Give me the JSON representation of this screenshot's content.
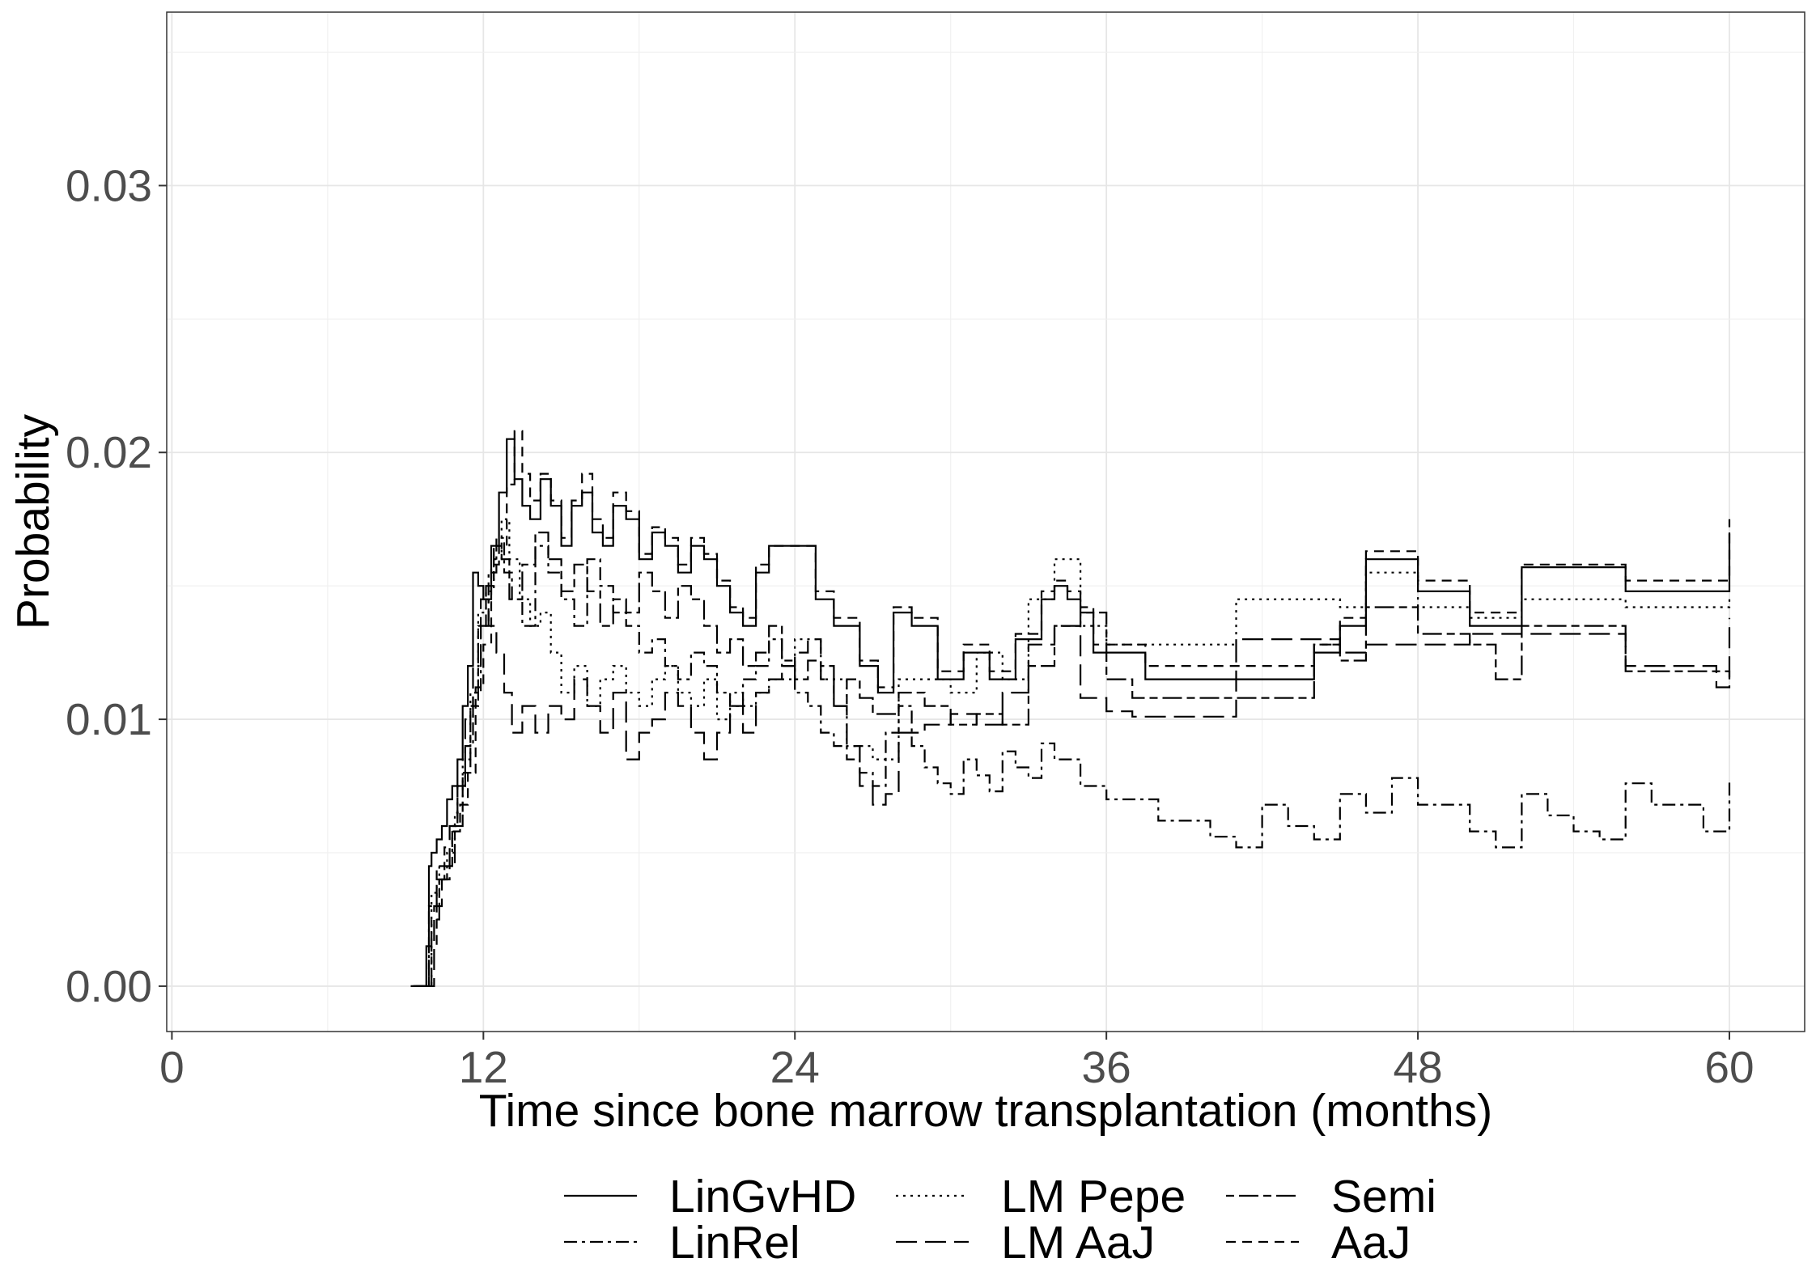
{
  "chart_data": {
    "type": "line",
    "title": "",
    "xlabel": "Time since bone marrow transplantation (months)",
    "ylabel": "Probability",
    "xlim": [
      0,
      60
    ],
    "ylim": [
      -0.0017,
      0.0365
    ],
    "x_ticks": [
      0,
      12,
      24,
      36,
      48,
      60
    ],
    "x_tick_labels": [
      "0",
      "12",
      "24",
      "36",
      "48",
      "60"
    ],
    "y_ticks": [
      0.0,
      0.01,
      0.02,
      0.03
    ],
    "y_tick_labels": [
      "0.00",
      "0.01",
      "0.02",
      "0.03"
    ],
    "grid": true,
    "legend_position": "bottom",
    "series": [
      {
        "name": "LinGvHD",
        "linestyle": "solid",
        "x": [
          9.2,
          9.8,
          9.9,
          10.0,
          10.2,
          10.4,
          10.6,
          10.8,
          11.0,
          11.2,
          11.4,
          11.6,
          11.8,
          12.0,
          12.3,
          12.6,
          12.9,
          13.2,
          13.5,
          13.8,
          14.2,
          14.6,
          15.0,
          15.4,
          15.8,
          16.2,
          16.6,
          17.0,
          17.5,
          18.0,
          18.5,
          19.0,
          19.5,
          20.0,
          20.5,
          21.0,
          21.5,
          22.0,
          22.5,
          23.0,
          24.0,
          24.8,
          25.5,
          26.5,
          27.2,
          27.8,
          28.5,
          29.5,
          30.5,
          31.5,
          32.5,
          33.5,
          34.0,
          34.5,
          35.0,
          35.5,
          36.0,
          37.5,
          41.0,
          44.0,
          45.0,
          46.0,
          48.0,
          50.0,
          52.0,
          55.5,
          56.0,
          59.5,
          60.0
        ],
        "y": [
          0.0,
          0.0015,
          0.0045,
          0.005,
          0.0055,
          0.006,
          0.007,
          0.0075,
          0.0085,
          0.0105,
          0.012,
          0.0155,
          0.015,
          0.0145,
          0.0165,
          0.0185,
          0.0205,
          0.019,
          0.018,
          0.0175,
          0.019,
          0.018,
          0.0165,
          0.018,
          0.0185,
          0.017,
          0.0165,
          0.018,
          0.0175,
          0.016,
          0.017,
          0.0165,
          0.0155,
          0.0165,
          0.016,
          0.015,
          0.014,
          0.0135,
          0.0155,
          0.0165,
          0.0165,
          0.0145,
          0.0135,
          0.012,
          0.011,
          0.014,
          0.0135,
          0.0115,
          0.0125,
          0.0115,
          0.013,
          0.0145,
          0.015,
          0.0145,
          0.014,
          0.0125,
          0.0125,
          0.0115,
          0.0115,
          0.0125,
          0.0135,
          0.016,
          0.0148,
          0.0135,
          0.0157,
          0.0157,
          0.0148,
          0.0148,
          0.017
        ]
      },
      {
        "name": "LinRel",
        "linestyle": "dashdot",
        "x": [
          9.3,
          9.9,
          10.2,
          10.5,
          10.8,
          11.0,
          11.3,
          11.6,
          11.9,
          12.2,
          12.5,
          12.8,
          13.1,
          13.5,
          14.0,
          14.5,
          15.0,
          15.5,
          16.0,
          16.5,
          17.0,
          17.5,
          18.0,
          18.5,
          19.0,
          19.5,
          20.0,
          20.5,
          21.0,
          21.5,
          22.0,
          22.5,
          23.0,
          23.5,
          24.0,
          24.5,
          25.0,
          25.5,
          26.0,
          26.5,
          27.0,
          27.5,
          28.0,
          28.5,
          29.0,
          29.5,
          30.0,
          30.5,
          31.0,
          31.5,
          32.0,
          32.5,
          33.0,
          33.5,
          34.0,
          35.0,
          36.0,
          38.0,
          40.0,
          41.0,
          42.0,
          43.0,
          44.0,
          45.0,
          46.0,
          47.0,
          48.0,
          50.0,
          51.0,
          52.0,
          53.0,
          54.0,
          55.0,
          56.0,
          57.0,
          59.0,
          60.0
        ],
        "y": [
          0.0,
          0.003,
          0.004,
          0.0045,
          0.006,
          0.0075,
          0.009,
          0.011,
          0.0135,
          0.0155,
          0.0168,
          0.0155,
          0.0145,
          0.0135,
          0.0165,
          0.0155,
          0.0145,
          0.0135,
          0.016,
          0.015,
          0.014,
          0.0135,
          0.0125,
          0.013,
          0.012,
          0.0115,
          0.0125,
          0.012,
          0.011,
          0.0105,
          0.0115,
          0.012,
          0.013,
          0.012,
          0.011,
          0.0105,
          0.0095,
          0.009,
          0.0085,
          0.008,
          0.0075,
          0.0095,
          0.0105,
          0.009,
          0.0082,
          0.0076,
          0.0072,
          0.0085,
          0.0079,
          0.0073,
          0.0088,
          0.0082,
          0.0078,
          0.0091,
          0.0085,
          0.0075,
          0.007,
          0.0062,
          0.0056,
          0.0052,
          0.0068,
          0.006,
          0.0055,
          0.0072,
          0.0065,
          0.0078,
          0.0068,
          0.0058,
          0.0052,
          0.0072,
          0.0064,
          0.0058,
          0.0055,
          0.0076,
          0.0068,
          0.0058,
          0.0078
        ]
      },
      {
        "name": "LM Pepe",
        "linestyle": "dotted",
        "x": [
          9.5,
          10.0,
          10.3,
          10.6,
          10.9,
          11.2,
          11.5,
          11.8,
          12.1,
          12.4,
          12.7,
          13.0,
          13.4,
          13.8,
          14.2,
          14.6,
          15.0,
          15.5,
          16.0,
          16.5,
          17.0,
          17.5,
          18.0,
          18.5,
          19.0,
          19.5,
          20.0,
          20.5,
          21.0,
          21.5,
          22.0,
          22.5,
          23.0,
          24.0,
          25.0,
          26.0,
          27.0,
          28.0,
          29.0,
          30.0,
          31.0,
          32.0,
          33.0,
          34.0,
          35.0,
          36.0,
          37.0,
          41.0,
          44.0,
          45.0,
          46.0,
          48.0,
          50.0,
          52.0,
          55.5,
          56.0,
          59.5,
          60.0
        ],
        "y": [
          0.0,
          0.0035,
          0.0045,
          0.005,
          0.0065,
          0.0085,
          0.011,
          0.014,
          0.0148,
          0.016,
          0.0175,
          0.016,
          0.0145,
          0.0135,
          0.014,
          0.0125,
          0.011,
          0.012,
          0.0105,
          0.0115,
          0.012,
          0.011,
          0.0105,
          0.0115,
          0.012,
          0.011,
          0.0105,
          0.0115,
          0.01,
          0.011,
          0.0105,
          0.011,
          0.0115,
          0.013,
          0.0115,
          0.009,
          0.0085,
          0.0115,
          0.0115,
          0.011,
          0.0125,
          0.0115,
          0.0145,
          0.016,
          0.0135,
          0.0128,
          0.0128,
          0.0145,
          0.0145,
          0.0142,
          0.0155,
          0.0142,
          0.0138,
          0.0145,
          0.0145,
          0.0142,
          0.0142,
          0.0145
        ]
      },
      {
        "name": "LM AaJ",
        "linestyle": "longdash",
        "x": [
          9.6,
          10.1,
          10.4,
          10.7,
          11.0,
          11.3,
          11.6,
          11.9,
          12.2,
          12.5,
          12.8,
          13.1,
          13.5,
          14.0,
          14.5,
          15.0,
          15.5,
          16.0,
          16.5,
          17.0,
          17.5,
          18.0,
          18.5,
          19.0,
          19.5,
          20.0,
          20.5,
          21.0,
          21.5,
          22.0,
          22.5,
          23.0,
          23.5,
          24.0,
          24.5,
          25.0,
          25.5,
          26.0,
          26.5,
          27.0,
          27.5,
          28.0,
          29.0,
          30.0,
          31.0,
          32.0,
          33.0,
          34.0,
          35.0,
          36.0,
          37.0,
          41.0,
          44.0,
          45.0,
          46.0,
          48.0,
          50.0,
          52.0,
          55.5,
          56.0,
          59.5,
          60.0
        ],
        "y": [
          0.0,
          0.003,
          0.004,
          0.006,
          0.0075,
          0.01,
          0.012,
          0.0145,
          0.0135,
          0.0125,
          0.011,
          0.0095,
          0.0105,
          0.0095,
          0.0105,
          0.01,
          0.0115,
          0.0105,
          0.0095,
          0.011,
          0.0085,
          0.0095,
          0.01,
          0.011,
          0.0105,
          0.0095,
          0.0085,
          0.0095,
          0.0105,
          0.0095,
          0.011,
          0.0115,
          0.012,
          0.0125,
          0.013,
          0.0115,
          0.0105,
          0.009,
          0.0075,
          0.0068,
          0.0072,
          0.0095,
          0.0098,
          0.0102,
          0.0098,
          0.011,
          0.0128,
          0.0135,
          0.0108,
          0.0103,
          0.0101,
          0.013,
          0.013,
          0.0125,
          0.0128,
          0.0128,
          0.0132,
          0.0132,
          0.0132,
          0.012,
          0.0112,
          0.0138
        ]
      },
      {
        "name": "Semi",
        "linestyle": "twodash",
        "x": [
          9.4,
          10.0,
          10.3,
          10.6,
          10.9,
          11.2,
          11.5,
          11.8,
          12.1,
          12.4,
          12.7,
          13.0,
          13.5,
          14.0,
          14.5,
          15.0,
          15.5,
          16.0,
          16.5,
          17.0,
          17.5,
          18.0,
          18.5,
          19.0,
          19.5,
          20.0,
          20.5,
          21.0,
          21.5,
          22.0,
          22.5,
          23.0,
          23.5,
          24.0,
          24.5,
          25.0,
          25.5,
          26.0,
          26.5,
          27.0,
          28.0,
          29.0,
          30.0,
          31.0,
          32.0,
          33.0,
          34.0,
          35.0,
          36.0,
          37.0,
          41.0,
          44.0,
          45.0,
          46.0,
          48.0,
          50.0,
          51.0,
          52.0,
          55.5,
          56.0,
          59.5,
          60.0
        ],
        "y": [
          0.0,
          0.0025,
          0.004,
          0.0045,
          0.006,
          0.008,
          0.0105,
          0.0135,
          0.015,
          0.0165,
          0.016,
          0.0145,
          0.0158,
          0.017,
          0.016,
          0.0148,
          0.0158,
          0.0148,
          0.0135,
          0.0145,
          0.014,
          0.0155,
          0.0148,
          0.0138,
          0.015,
          0.0145,
          0.0135,
          0.0125,
          0.013,
          0.012,
          0.0125,
          0.0135,
          0.0122,
          0.0115,
          0.0122,
          0.012,
          0.0105,
          0.0115,
          0.0108,
          0.0102,
          0.011,
          0.0105,
          0.0098,
          0.0102,
          0.0098,
          0.012,
          0.0135,
          0.014,
          0.0115,
          0.0108,
          0.0108,
          0.0128,
          0.0122,
          0.0142,
          0.0132,
          0.0128,
          0.0115,
          0.0135,
          0.0135,
          0.0118,
          0.0118,
          0.0115
        ]
      },
      {
        "name": "AaJ",
        "linestyle": "dashed",
        "x": [
          9.3,
          9.9,
          10.2,
          10.5,
          10.8,
          11.1,
          11.4,
          11.7,
          12.0,
          12.3,
          12.6,
          12.9,
          13.2,
          13.5,
          13.8,
          14.2,
          14.6,
          15.0,
          15.4,
          15.8,
          16.2,
          16.6,
          17.0,
          17.5,
          18.0,
          18.5,
          19.0,
          19.5,
          20.0,
          20.5,
          21.0,
          21.5,
          22.0,
          22.5,
          23.0,
          24.0,
          24.8,
          25.5,
          26.5,
          27.2,
          27.8,
          28.5,
          29.5,
          30.5,
          31.5,
          32.5,
          33.5,
          34.0,
          34.5,
          35.0,
          35.5,
          36.0,
          37.5,
          41.0,
          44.0,
          45.0,
          46.0,
          48.0,
          50.0,
          52.0,
          55.5,
          56.0,
          59.5,
          60.0
        ],
        "y": [
          0.0,
          0.0015,
          0.0045,
          0.0052,
          0.0058,
          0.0068,
          0.008,
          0.0112,
          0.0128,
          0.0158,
          0.0165,
          0.0188,
          0.0208,
          0.0192,
          0.0182,
          0.0192,
          0.0182,
          0.0168,
          0.0182,
          0.0192,
          0.0175,
          0.0168,
          0.0185,
          0.0178,
          0.0162,
          0.0172,
          0.0168,
          0.0158,
          0.0168,
          0.0162,
          0.0152,
          0.0142,
          0.0138,
          0.0158,
          0.0165,
          0.0165,
          0.0148,
          0.0138,
          0.0122,
          0.0112,
          0.0142,
          0.0138,
          0.0118,
          0.0128,
          0.0118,
          0.0132,
          0.0148,
          0.0152,
          0.0148,
          0.0142,
          0.0128,
          0.0128,
          0.012,
          0.012,
          0.0128,
          0.0138,
          0.0163,
          0.0152,
          0.014,
          0.0158,
          0.0158,
          0.0152,
          0.0152,
          0.0175
        ]
      }
    ],
    "legend": [
      {
        "label": "LinGvHD",
        "linestyle": "solid"
      },
      {
        "label": "LM Pepe",
        "linestyle": "dotted"
      },
      {
        "label": "Semi",
        "linestyle": "twodash"
      },
      {
        "label": "LinRel",
        "linestyle": "dashdot"
      },
      {
        "label": "LM AaJ",
        "linestyle": "longdash"
      },
      {
        "label": "AaJ",
        "linestyle": "dashed"
      }
    ]
  }
}
